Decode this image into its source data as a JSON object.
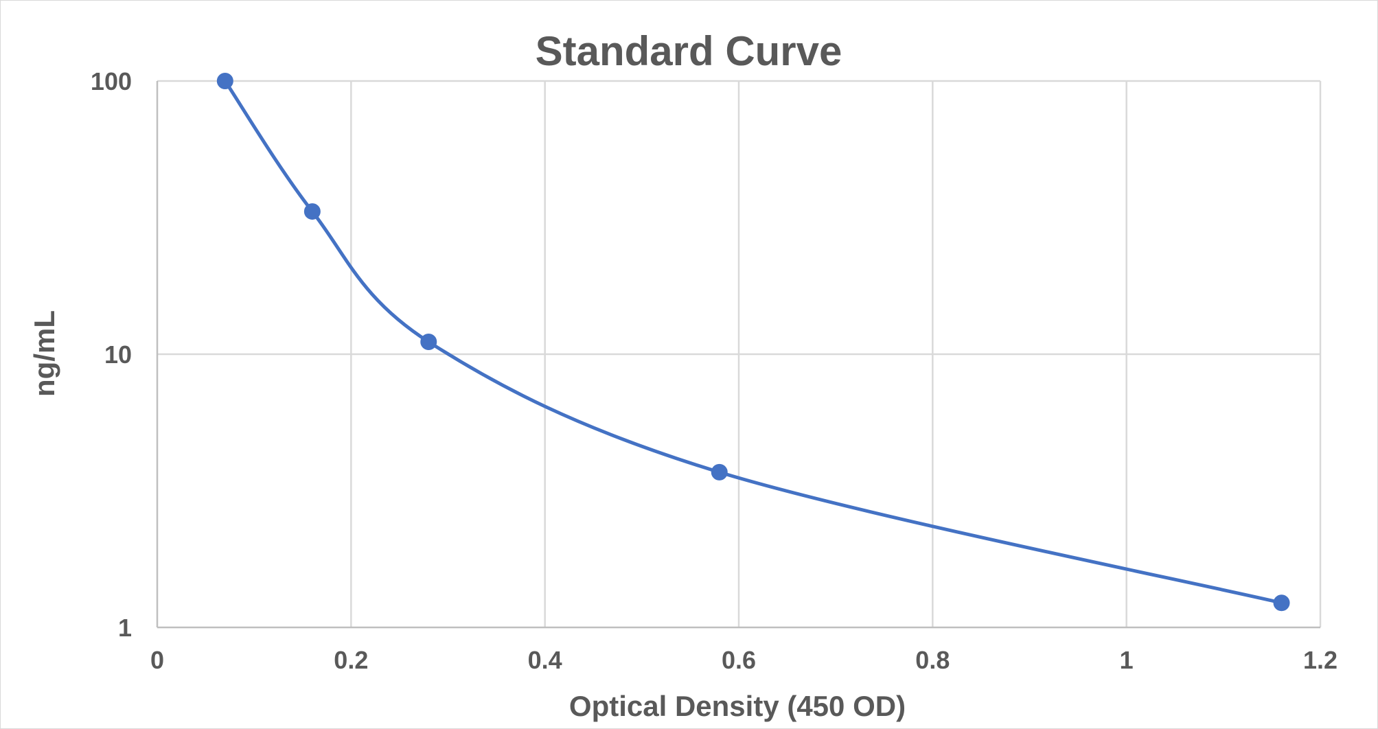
{
  "chart_data": {
    "type": "scatter",
    "title": "Standard Curve",
    "xlabel": "Optical Density (450 OD)",
    "ylabel": "ng/mL",
    "xlim": [
      0,
      1.2
    ],
    "ylim": [
      1,
      100
    ],
    "y_scale": "log",
    "grid": true,
    "smooth_line": true,
    "marker": "circle",
    "x_ticks": [
      "0",
      "0.2",
      "0.4",
      "0.6",
      "0.8",
      "1",
      "1.2"
    ],
    "y_ticks": [
      "1",
      "10",
      "100"
    ],
    "series": [
      {
        "color": "#4472C4",
        "points": [
          {
            "x": 0.07,
            "y": 100
          },
          {
            "x": 0.16,
            "y": 33.3
          },
          {
            "x": 0.28,
            "y": 11.1
          },
          {
            "x": 0.58,
            "y": 3.7
          },
          {
            "x": 1.16,
            "y": 1.23
          }
        ]
      }
    ]
  }
}
